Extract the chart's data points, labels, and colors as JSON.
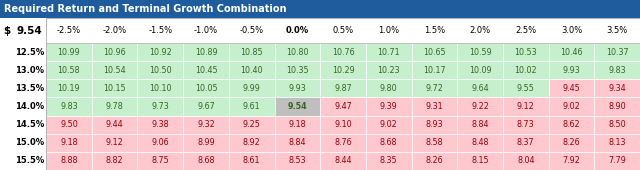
{
  "title": "Required Return and Terminal Growth Combination",
  "title_bg": "#1F5C9E",
  "title_color": "white",
  "header_label_left": "$",
  "header_value_left": "9.54",
  "col_headers": [
    "-2.5%",
    "-2.0%",
    "-1.5%",
    "-1.0%",
    "-0.5%",
    "0.0%",
    "0.5%",
    "1.0%",
    "1.5%",
    "2.0%",
    "2.5%",
    "3.0%",
    "3.5%"
  ],
  "row_headers": [
    "12.5%",
    "13.0%",
    "13.5%",
    "14.0%",
    "14.5%",
    "15.0%",
    "15.5%"
  ],
  "values": [
    [
      10.99,
      10.96,
      10.92,
      10.89,
      10.85,
      10.8,
      10.76,
      10.71,
      10.65,
      10.59,
      10.53,
      10.46,
      10.37
    ],
    [
      10.58,
      10.54,
      10.5,
      10.45,
      10.4,
      10.35,
      10.29,
      10.23,
      10.17,
      10.09,
      10.02,
      9.93,
      9.83
    ],
    [
      10.19,
      10.15,
      10.1,
      10.05,
      9.99,
      9.93,
      9.87,
      9.8,
      9.72,
      9.64,
      9.55,
      9.45,
      9.34
    ],
    [
      9.83,
      9.78,
      9.73,
      9.67,
      9.61,
      9.54,
      9.47,
      9.39,
      9.31,
      9.22,
      9.12,
      9.02,
      8.9
    ],
    [
      9.5,
      9.44,
      9.38,
      9.32,
      9.25,
      9.18,
      9.1,
      9.02,
      8.93,
      8.84,
      8.73,
      8.62,
      8.5
    ],
    [
      9.18,
      9.12,
      9.06,
      8.99,
      8.92,
      8.84,
      8.76,
      8.68,
      8.58,
      8.48,
      8.37,
      8.26,
      8.13
    ],
    [
      8.88,
      8.82,
      8.75,
      8.68,
      8.61,
      8.53,
      8.44,
      8.35,
      8.26,
      8.15,
      8.04,
      7.92,
      7.79
    ]
  ],
  "highlight_row": 3,
  "highlight_col": 5,
  "threshold": 9.54,
  "color_above": "#C6EFCE",
  "color_above_text": "#376623",
  "color_below": "#FFC7CE",
  "color_below_text": "#9C0006",
  "color_highlight_bg": "#BFBFBF",
  "color_highlight_text": "#376623",
  "fig_width": 6.4,
  "fig_height": 1.7,
  "dpi": 100
}
